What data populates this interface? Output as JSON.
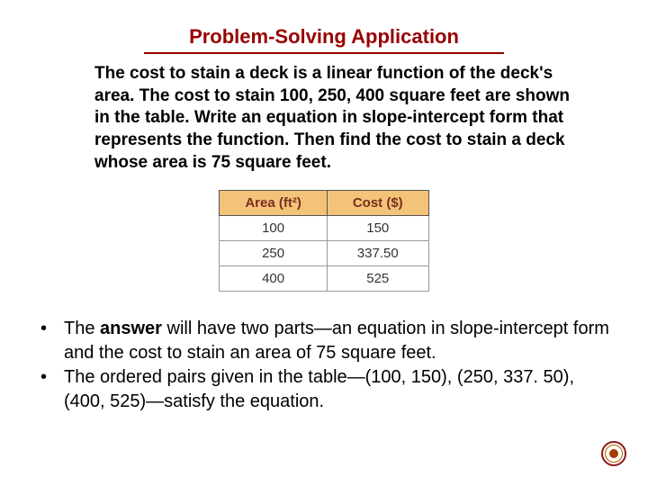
{
  "title": "Problem-Solving Application",
  "problem": "The cost to stain a deck is a linear function of the deck's area. The cost to stain 100, 250, 400 square feet are shown in the table. Write an equation in slope-intercept form that represents the function. Then find the cost to stain a deck whose area is 75 square feet.",
  "table": {
    "type": "table",
    "header_bg": "#f4c37a",
    "header_text_color": "#7a2e1e",
    "border_color": "#555555",
    "cell_fontsize": 15,
    "columns": [
      "Area (ft²)",
      "Cost ($)"
    ],
    "rows": [
      [
        "100",
        "150"
      ],
      [
        "250",
        "337.50"
      ],
      [
        "400",
        "525"
      ]
    ]
  },
  "bullets": {
    "b1_pre": "The ",
    "b1_bold": "answer",
    "b1_post": " will have two parts—an equation in slope-intercept form and the cost to stain an area of 75 square feet.",
    "b2": "The ordered pairs given in the table—(100, 150), (250, 337. 50), (400, 525)—satisfy the equation."
  },
  "colors": {
    "title": "#990000",
    "text": "#000000",
    "background": "#ffffff"
  }
}
